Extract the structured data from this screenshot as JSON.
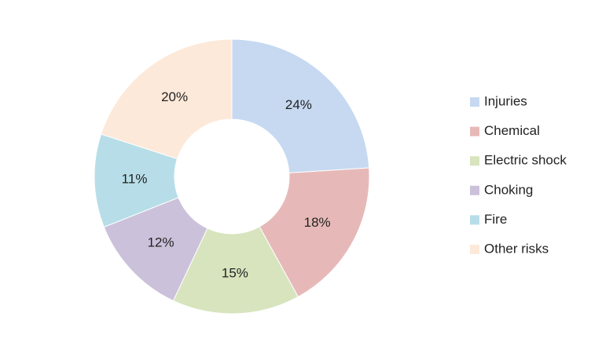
{
  "chart_data": {
    "type": "donut",
    "categories": [
      "Injuries",
      "Chemical",
      "Electric shock",
      "Choking",
      "Fire",
      "Other risks"
    ],
    "values": [
      24,
      18,
      15,
      12,
      11,
      20
    ],
    "value_labels": [
      "24%",
      "18%",
      "15%",
      "12%",
      "11%",
      "20%"
    ],
    "colors": [
      "#c6d9f1",
      "#e6b9b8",
      "#d7e4bd",
      "#ccc1da",
      "#b7dee8",
      "#fde9d9"
    ],
    "legend": "right"
  }
}
